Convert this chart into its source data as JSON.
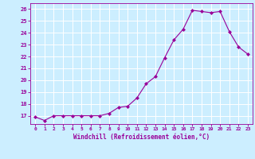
{
  "x": [
    0,
    1,
    2,
    3,
    4,
    5,
    6,
    7,
    8,
    9,
    10,
    11,
    12,
    13,
    14,
    15,
    16,
    17,
    18,
    19,
    20,
    21,
    22,
    23
  ],
  "y": [
    16.9,
    16.6,
    17.0,
    17.0,
    17.0,
    17.0,
    17.0,
    17.0,
    17.2,
    17.7,
    17.8,
    18.5,
    19.7,
    20.3,
    21.9,
    23.4,
    24.3,
    25.9,
    25.8,
    25.7,
    25.8,
    24.1,
    22.8,
    22.2
  ],
  "line_color": "#990099",
  "marker": "D",
  "marker_size": 2,
  "bg_color": "#cceeff",
  "grid_color": "#ffffff",
  "xlabel": "Windchill (Refroidissement éolien,°C)",
  "ylabel_ticks": [
    17,
    18,
    19,
    20,
    21,
    22,
    23,
    24,
    25,
    26
  ],
  "xlim": [
    -0.5,
    23.5
  ],
  "ylim": [
    16.3,
    26.5
  ],
  "tick_color": "#990099",
  "label_color": "#990099"
}
